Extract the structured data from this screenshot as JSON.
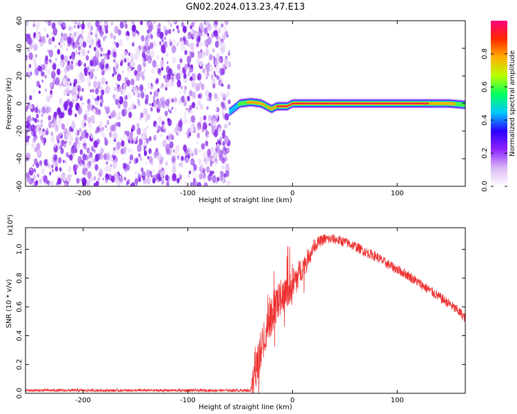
{
  "figure": {
    "title": "GN02.2024.013.23.47.E13"
  },
  "chart_data": [
    {
      "type": "heatmap",
      "xlabel": "Height of straight line (km)",
      "ylabel": "Frequency (Hz)",
      "xlim": [
        -255,
        165
      ],
      "ylim": [
        -60,
        60
      ],
      "xticks": [
        -200,
        -100,
        0,
        100
      ],
      "yticks": [
        -60,
        -40,
        -20,
        0,
        20,
        40,
        60
      ],
      "colorbar": {
        "label": "Normalized spectral amplitude",
        "range": [
          0,
          1
        ],
        "ticks": [
          "0.0",
          "0.2",
          "0.4",
          "0.6",
          "0.8"
        ],
        "colors": [
          "#ffffff",
          "#d9b8f5",
          "#8f24ff",
          "#2a00ff",
          "#00c8ff",
          "#00ff60",
          "#b8ff00",
          "#ffb000",
          "#ff2a00",
          "#ff007a"
        ]
      },
      "noise_region_x": [
        -255,
        -60
      ],
      "signal_track": {
        "x": [
          -60,
          -50,
          -40,
          -30,
          -25,
          -20,
          -15,
          -10,
          -5,
          0,
          40,
          80,
          120,
          150,
          165
        ],
        "frequency": [
          -6,
          0,
          1,
          0,
          -2,
          -4,
          -2,
          -2,
          -2,
          0,
          0,
          0,
          0,
          0,
          -1
        ],
        "amplitude": [
          0.4,
          0.6,
          0.8,
          0.85,
          0.7,
          0.85,
          0.9,
          0.9,
          0.9,
          0.95,
          0.95,
          0.95,
          0.95,
          0.8,
          0.6
        ]
      },
      "grid": false
    },
    {
      "type": "line",
      "xlabel": "Height of straight line (km)",
      "ylabel": "SNR (10 * v/v)",
      "y_multiplier": "(x10⁴)",
      "xlim": [
        -255,
        165
      ],
      "ylim": [
        0,
        1.15
      ],
      "xticks": [
        -200,
        -100,
        0,
        100
      ],
      "yticks": [
        "0.0",
        "0.2",
        "0.4",
        "0.6",
        "0.8",
        "1.0"
      ],
      "series": [
        {
          "color": "#ee3030",
          "x": [
            -255,
            -200,
            -150,
            -100,
            -60,
            -40,
            -38,
            -35,
            -30,
            -25,
            -20,
            -15,
            -10,
            -5,
            0,
            5,
            10,
            15,
            20,
            25,
            30,
            40,
            50,
            60,
            70,
            80,
            90,
            100,
            110,
            120,
            130,
            140,
            150,
            160,
            165
          ],
          "values": [
            0.02,
            0.02,
            0.02,
            0.02,
            0.02,
            0.02,
            0.08,
            0.15,
            0.3,
            0.45,
            0.55,
            0.62,
            0.68,
            0.72,
            0.76,
            0.82,
            0.88,
            0.95,
            1.02,
            1.05,
            1.07,
            1.07,
            1.05,
            1.02,
            0.98,
            0.95,
            0.9,
            0.86,
            0.82,
            0.77,
            0.72,
            0.67,
            0.62,
            0.56,
            0.52
          ],
          "noise": [
            0.01,
            0.01,
            0.01,
            0.01,
            0.01,
            0.01,
            0.05,
            0.12,
            0.15,
            0.15,
            0.14,
            0.12,
            0.12,
            0.12,
            0.11,
            0.1,
            0.08,
            0.06,
            0.05,
            0.04,
            0.04,
            0.035,
            0.035,
            0.035,
            0.035,
            0.035,
            0.035,
            0.035,
            0.035,
            0.035,
            0.035,
            0.035,
            0.035,
            0.035,
            0.035
          ]
        }
      ],
      "grid": false
    }
  ]
}
